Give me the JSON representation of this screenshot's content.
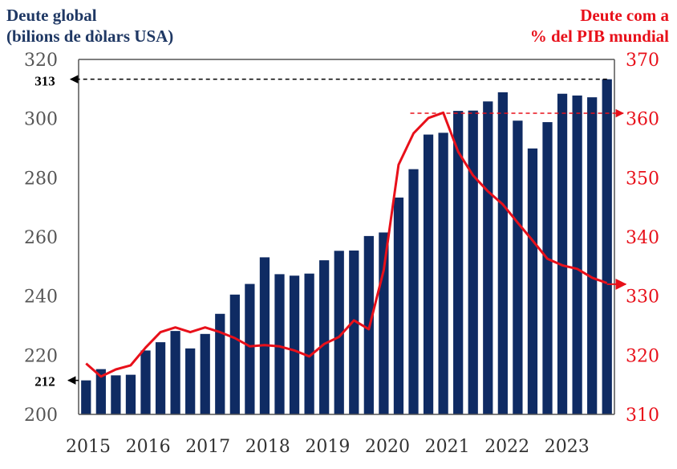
{
  "chart_data": {
    "type": "bar+line",
    "title_left_line1": "Deute global",
    "title_left_line2": "(bilions de dòlars USA)",
    "title_right_line1": "Deute com a",
    "title_right_line2": "% del PIB mundial",
    "x_ticks": [
      "2015",
      "2016",
      "2017",
      "2018",
      "2019",
      "2020",
      "2021",
      "2022",
      "2023"
    ],
    "y_left": {
      "min": 200,
      "max": 320,
      "ticks": [
        200,
        220,
        240,
        260,
        280,
        300,
        320
      ]
    },
    "y_right": {
      "min": 310,
      "max": 370,
      "ticks": [
        310,
        320,
        330,
        340,
        350,
        360,
        370
      ]
    },
    "bars": {
      "series_color": "#0f2b63",
      "values": [
        211.5,
        215.3,
        213.2,
        213.4,
        221.6,
        224.4,
        228.2,
        222.3,
        227.2,
        234,
        240.5,
        244.1,
        253.1,
        247.4,
        246.9,
        247.6,
        252.1,
        255.3,
        255.4,
        260.3,
        261.5,
        273.3,
        282.9,
        294.6,
        295.2,
        302.6,
        302.7,
        305.8,
        308.9,
        299.3,
        289.9,
        298.8,
        308.4,
        307.8,
        307.2,
        313.3
      ]
    },
    "line": {
      "series_color": "#e8101a",
      "values": [
        318.6,
        316.4,
        317.6,
        318.3,
        321.3,
        323.9,
        324.7,
        323.9,
        324.7,
        323.9,
        322.9,
        321.5,
        321.7,
        321.5,
        320.8,
        319.8,
        321.9,
        323.1,
        325.9,
        324.4,
        334.4,
        352.2,
        357.5,
        360.1,
        361,
        354.4,
        350.4,
        347.7,
        345.5,
        342.4,
        339.4,
        336.3,
        335.2,
        334.6,
        333.1,
        332.2
      ]
    },
    "annotations": {
      "bar_max": "313",
      "bar_min": "212",
      "line_peak": 360.9,
      "line_last": 332
    }
  }
}
